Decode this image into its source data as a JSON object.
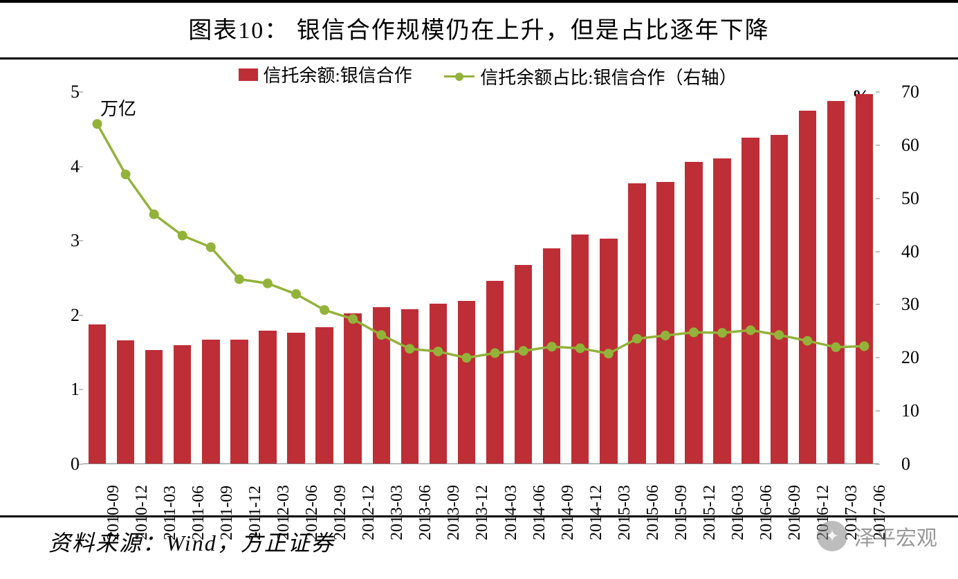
{
  "title": "图表10：  银信合作规模仍在上升，但是占比逐年下降",
  "source": "资料来源：Wind，方正证券",
  "watermark": "泽平宏观",
  "chart": {
    "type": "bar+line",
    "background_color": "#ffffff",
    "bar_color": "#be2e36",
    "line_color": "#93b23a",
    "marker_color": "#93b23a",
    "axis_color": "#808080",
    "text_color": "#000000",
    "title_fontsize": 34,
    "label_fontsize": 26,
    "tick_fontsize": 26,
    "bar_width_ratio": 0.62,
    "line_width": 3.5,
    "marker_radius": 7,
    "legend": {
      "bar_label": "信托余额:银信合作",
      "line_label": "信托余额占比:银信合作（右轴）"
    },
    "left_axis": {
      "unit": "万亿",
      "min": 0,
      "max": 5,
      "ticks": [
        0,
        1,
        2,
        3,
        4,
        5
      ]
    },
    "right_axis": {
      "unit": "%",
      "min": 0,
      "max": 70,
      "ticks": [
        0,
        10,
        20,
        30,
        40,
        50,
        60,
        70
      ]
    },
    "categories": [
      "2010-09",
      "2010-12",
      "2011-03",
      "2011-06",
      "2011-09",
      "2011-12",
      "2012-03",
      "2012-06",
      "2012-09",
      "2012-12",
      "2013-03",
      "2013-06",
      "2013-09",
      "2013-12",
      "2014-03",
      "2014-06",
      "2014-09",
      "2014-12",
      "2015-03",
      "2015-06",
      "2015-09",
      "2015-12",
      "2016-03",
      "2016-06",
      "2016-09",
      "2016-12",
      "2017-03",
      "2017-06"
    ],
    "bar_values": [
      1.88,
      1.66,
      1.53,
      1.6,
      1.67,
      1.67,
      1.79,
      1.77,
      1.84,
      2.03,
      2.11,
      2.08,
      2.16,
      2.19,
      2.46,
      2.68,
      2.9,
      3.09,
      3.03,
      3.77,
      3.79,
      4.06,
      4.11,
      4.39,
      4.42,
      4.75,
      4.88,
      4.97
    ],
    "line_values": [
      64.0,
      54.5,
      47.0,
      43.0,
      40.8,
      34.8,
      34.0,
      32.0,
      29.0,
      27.3,
      24.3,
      21.7,
      21.2,
      20.0,
      20.9,
      21.3,
      22.1,
      21.8,
      20.8,
      23.6,
      24.2,
      24.8,
      24.7,
      25.2,
      24.3,
      23.2,
      22.0,
      22.2
    ]
  }
}
